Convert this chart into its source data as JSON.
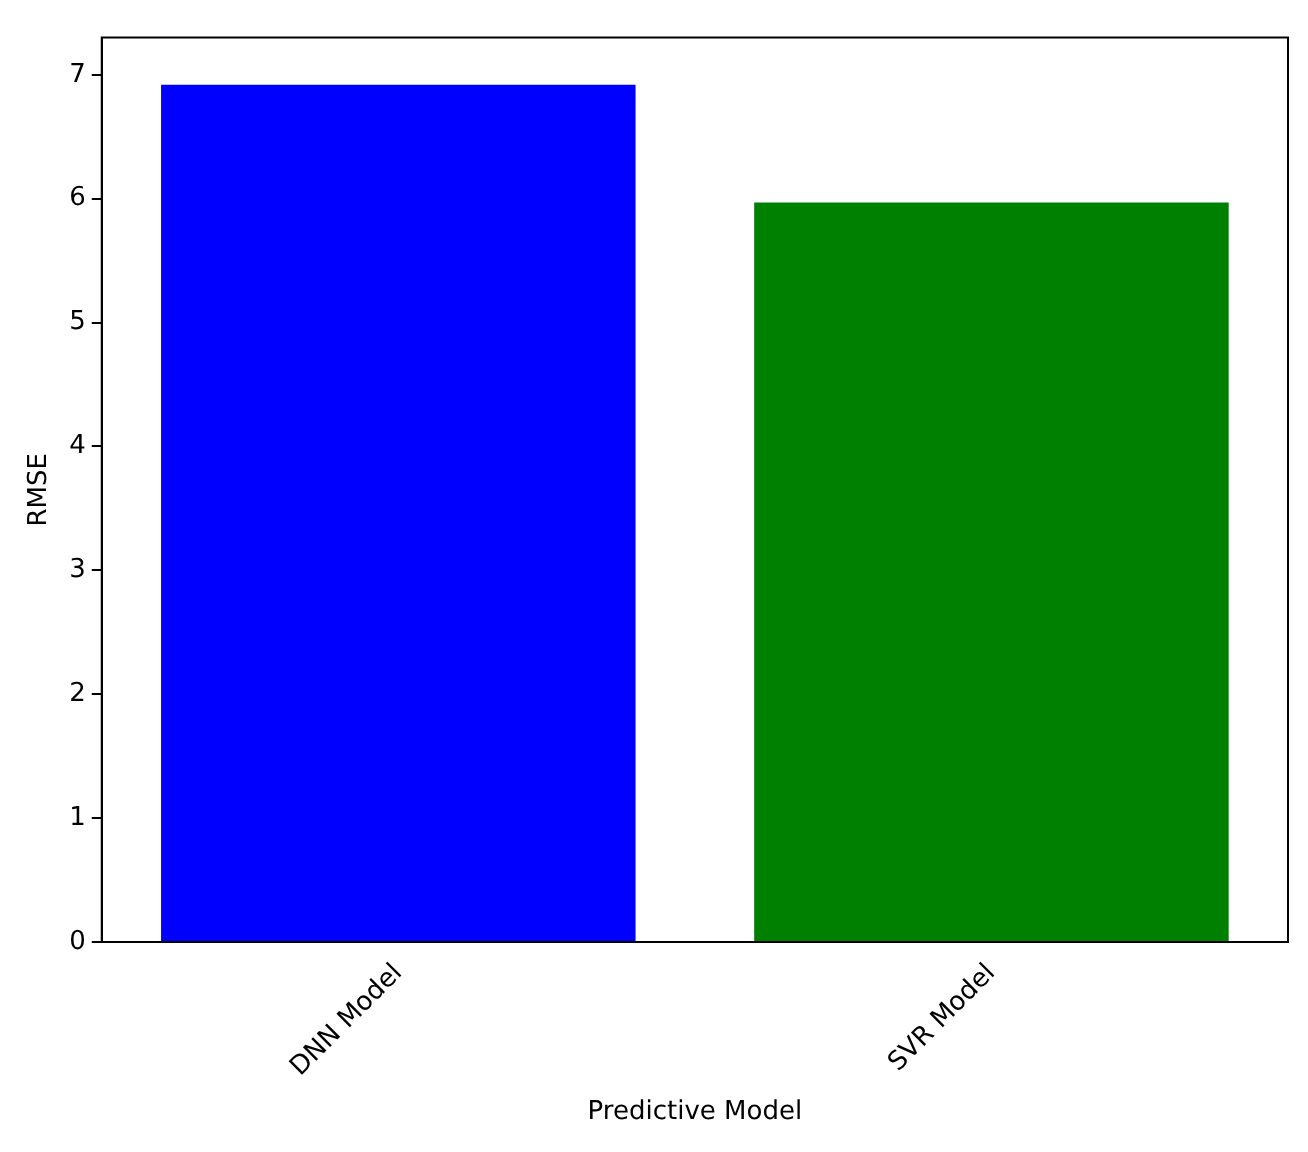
{
  "chart_data": {
    "type": "bar",
    "xlabel": "Predictive Model",
    "ylabel": "RMSE",
    "categories": [
      "DNN Model",
      "SVR Model"
    ],
    "values": [
      6.92,
      5.97
    ],
    "colors": [
      "#0000ff",
      "#008000"
    ],
    "ylim": [
      0,
      7.3
    ],
    "yticks": [
      0,
      1,
      2,
      3,
      4,
      5,
      6,
      7
    ],
    "grid": false,
    "legend": false
  }
}
